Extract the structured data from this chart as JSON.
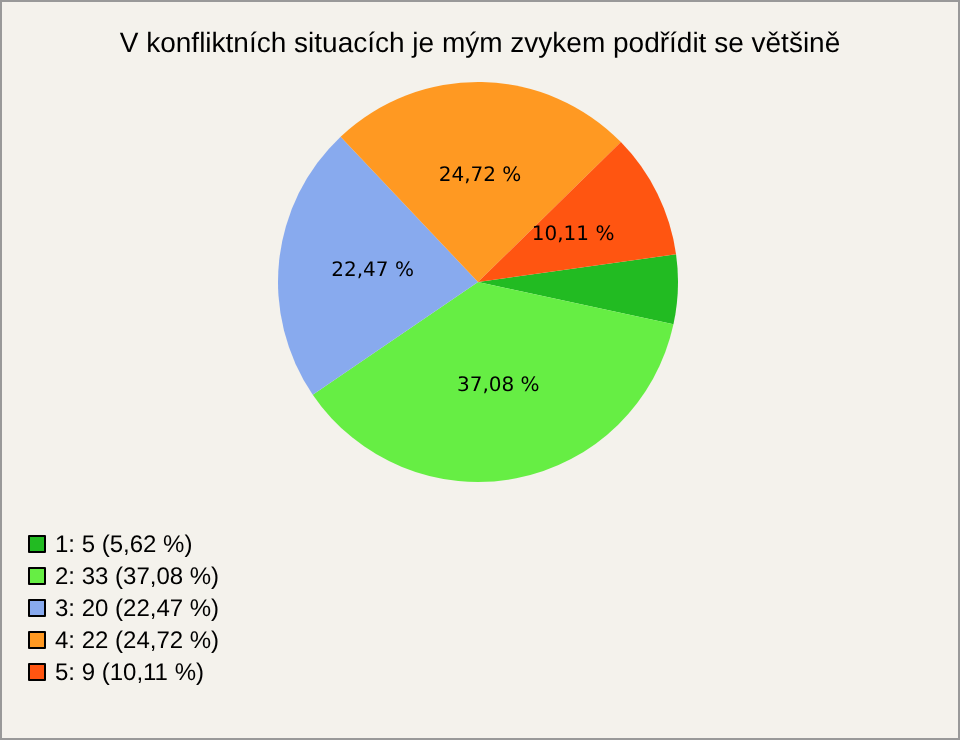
{
  "chart_data": {
    "type": "pie",
    "title": "V konfliktních situacích je mým zvykem podřídit se většině",
    "categories": [
      "1: 5 (5,62 %)",
      "2: 33 (37,08 %)",
      "3: 20 (22,47 %)",
      "4: 22 (24,72 %)",
      "5: 9 (10,11 %)"
    ],
    "values": [
      5.62,
      37.08,
      22.47,
      24.72,
      10.11
    ],
    "colors": [
      "#22bb22",
      "#66ee44",
      "#88aaee",
      "#ff9922",
      "#ff5511"
    ],
    "value_labels": [
      null,
      "37,08 %",
      "22,47 %",
      "24,72 %",
      "10,11 %"
    ],
    "legend": "bottom left"
  }
}
